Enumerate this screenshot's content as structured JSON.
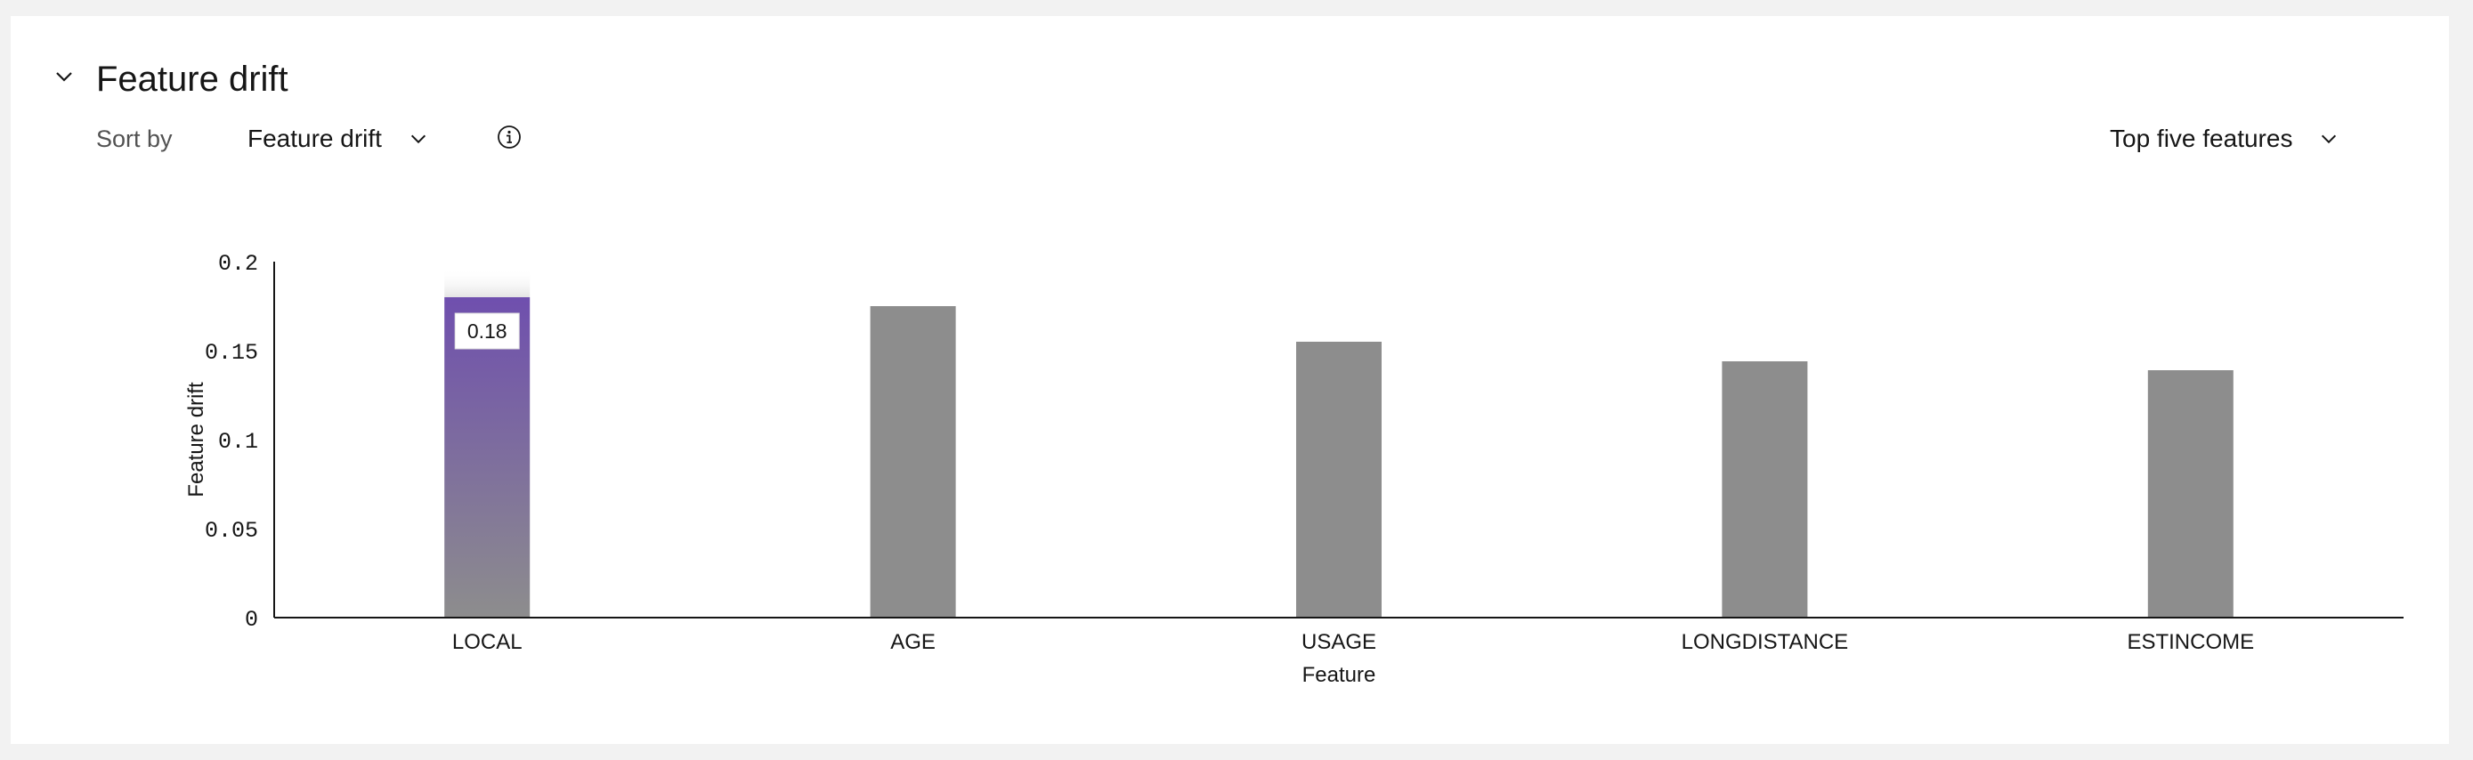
{
  "header": {
    "title": "Feature drift",
    "collapse_icon": "chevron-down-icon"
  },
  "controls": {
    "sort_label": "Sort by",
    "sort_value": "Feature drift",
    "info_icon": "information-icon",
    "top_value": "Top five features"
  },
  "chart_data": {
    "type": "bar",
    "categories": [
      "LOCAL",
      "AGE",
      "USAGE",
      "LONGDISTANCE",
      "ESTINCOME"
    ],
    "values": [
      0.18,
      0.175,
      0.155,
      0.144,
      0.139
    ],
    "xlabel": "Feature",
    "ylabel": "Feature drift",
    "ylim": [
      0,
      0.2
    ],
    "yticks": [
      0,
      0.05,
      0.1,
      0.15,
      0.2
    ],
    "ytick_labels": [
      "0",
      "0.05",
      "0.1",
      "0.15",
      "0.2"
    ],
    "highlighted_category": "LOCAL",
    "tooltip_label": "0.18",
    "colors": {
      "bar": "#8d8d8d",
      "highlight_top": "#6f4fae",
      "highlight_bottom": "#8d8d8d",
      "axis": "#161616"
    },
    "grid": false,
    "legend": "none"
  }
}
